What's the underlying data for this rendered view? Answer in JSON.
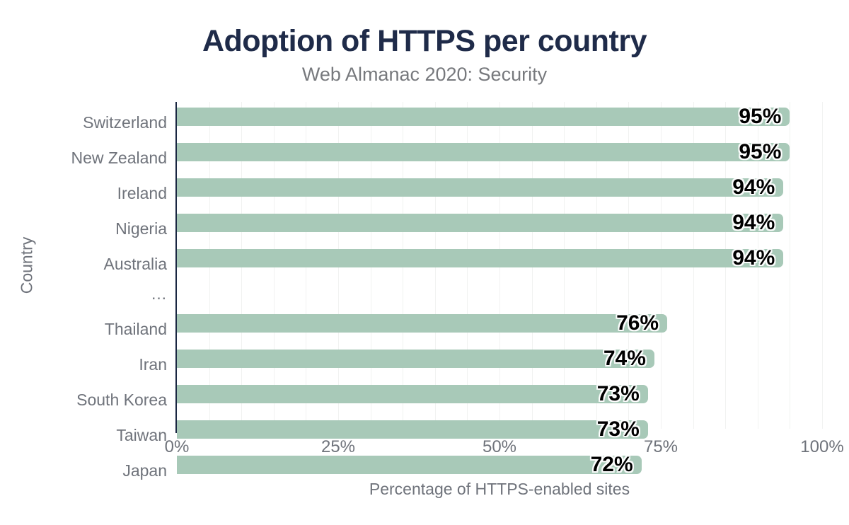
{
  "title": "Adoption of HTTPS per country",
  "subtitle": "Web Almanac 2020: Security",
  "chart_data": {
    "type": "bar",
    "orientation": "horizontal",
    "title": "Adoption of HTTPS per country",
    "subtitle": "Web Almanac 2020: Security",
    "xlabel": "Percentage of HTTPS-enabled sites",
    "ylabel": "Country",
    "xlim": [
      0,
      100
    ],
    "x_ticks": [
      "0%",
      "25%",
      "50%",
      "75%",
      "100%"
    ],
    "x_tick_values": [
      0,
      25,
      50,
      75,
      100
    ],
    "grid": "vertical gridlines every 5%",
    "legend": "none",
    "categories": [
      "Switzerland",
      "New Zealand",
      "Ireland",
      "Nigeria",
      "Australia",
      "…",
      "Thailand",
      "Iran",
      "South Korea",
      "Taiwan",
      "Japan"
    ],
    "values": [
      95,
      95,
      94,
      94,
      94,
      null,
      76,
      74,
      73,
      73,
      72
    ],
    "bar_labels": [
      "95%",
      "95%",
      "94%",
      "94%",
      "94%",
      "",
      "76%",
      "74%",
      "73%",
      "73%",
      "72%"
    ],
    "colors": {
      "bar": "#a8c9b8",
      "axis_line": "#1a2742",
      "title_text": "#1f2b49",
      "muted_text": "#6f737b",
      "value_label_text": "#000000",
      "value_label_halo": "#ffffff",
      "gridline": "#f1f2f1",
      "background": "#ffffff"
    }
  }
}
